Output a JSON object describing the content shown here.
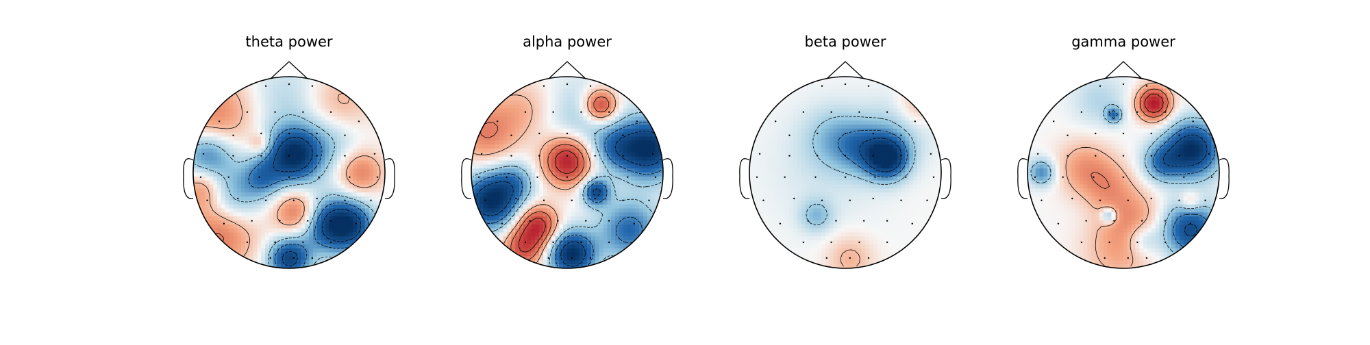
{
  "figure": {
    "colors": {
      "background": "#ffffff",
      "positive": "#b2182b",
      "neutral": "#f7f7f7",
      "negative": "#053061",
      "outline": "#000000"
    },
    "colormap": "RdBu_r"
  },
  "chart_data": [
    {
      "type": "heatmap",
      "subtype": "topomap",
      "title": "theta power",
      "contours": true,
      "sensor_markers": true,
      "blobs": [
        [
          -0.78,
          0.6,
          0.28,
          0.45
        ],
        [
          -0.85,
          0.18,
          0.2,
          -0.6
        ],
        [
          -0.9,
          -0.15,
          0.16,
          0.45
        ],
        [
          -0.6,
          -0.28,
          0.22,
          -0.45
        ],
        [
          -0.72,
          -0.62,
          0.26,
          0.55
        ],
        [
          0.05,
          0.18,
          0.2,
          -1.0
        ],
        [
          -0.28,
          -0.05,
          0.15,
          -0.45
        ],
        [
          -0.3,
          0.3,
          0.08,
          0.3
        ],
        [
          0.08,
          -0.42,
          0.16,
          0.55
        ],
        [
          0.75,
          0.0,
          0.16,
          0.45
        ],
        [
          0.4,
          -0.55,
          0.2,
          -0.7
        ],
        [
          0.65,
          -0.55,
          0.18,
          -0.7
        ],
        [
          0.0,
          -0.9,
          0.15,
          -0.85
        ],
        [
          0.5,
          0.7,
          0.25,
          0.3
        ],
        [
          0.0,
          0.75,
          0.3,
          -0.2
        ],
        [
          0.45,
          0.35,
          0.22,
          -0.25
        ]
      ]
    },
    {
      "type": "heatmap",
      "subtype": "topomap",
      "title": "alpha power",
      "contours": true,
      "sensor_markers": true,
      "blobs": [
        [
          0.0,
          0.12,
          0.17,
          1.0
        ],
        [
          0.35,
          0.7,
          0.12,
          0.8
        ],
        [
          -0.3,
          -0.55,
          0.14,
          0.8
        ],
        [
          -0.45,
          -0.78,
          0.15,
          0.7
        ],
        [
          -0.85,
          0.42,
          0.22,
          0.45
        ],
        [
          -0.45,
          0.65,
          0.22,
          0.25
        ],
        [
          0.85,
          0.25,
          0.22,
          -1.0
        ],
        [
          0.5,
          0.25,
          0.16,
          -0.4
        ],
        [
          -0.8,
          -0.3,
          0.2,
          -1.0
        ],
        [
          -0.55,
          -0.1,
          0.15,
          -0.4
        ],
        [
          0.05,
          -0.85,
          0.17,
          -1.0
        ],
        [
          0.3,
          -0.2,
          0.1,
          -0.8
        ],
        [
          0.65,
          -0.6,
          0.22,
          -0.6
        ],
        [
          0.15,
          0.55,
          0.3,
          -0.25
        ]
      ]
    },
    {
      "type": "heatmap",
      "subtype": "topomap",
      "title": "beta power",
      "contours": true,
      "sensor_markers": true,
      "blobs": [
        [
          0.44,
          0.15,
          0.15,
          -0.95
        ],
        [
          0.2,
          0.25,
          0.18,
          -0.4
        ],
        [
          -0.1,
          0.35,
          0.22,
          -0.3
        ],
        [
          0.55,
          0.45,
          0.25,
          -0.2
        ],
        [
          -0.3,
          -0.45,
          0.12,
          -0.3
        ],
        [
          0.75,
          0.7,
          0.15,
          0.25
        ],
        [
          0.05,
          -0.9,
          0.17,
          0.25
        ],
        [
          -0.2,
          0.05,
          0.45,
          -0.1
        ]
      ]
    },
    {
      "type": "heatmap",
      "subtype": "topomap",
      "title": "gamma power",
      "contours": true,
      "sensor_markers": true,
      "blobs": [
        [
          0.32,
          0.72,
          0.12,
          1.0
        ],
        [
          0.72,
          0.24,
          0.2,
          -1.0
        ],
        [
          0.4,
          0.1,
          0.14,
          -0.5
        ],
        [
          -0.4,
          0.05,
          0.2,
          0.35
        ],
        [
          -0.15,
          -0.15,
          0.18,
          0.3
        ],
        [
          0.1,
          -0.45,
          0.2,
          0.3
        ],
        [
          -0.05,
          -0.8,
          0.25,
          0.3
        ],
        [
          -0.85,
          0.0,
          0.1,
          -0.5
        ],
        [
          -0.1,
          0.6,
          0.06,
          -0.5
        ],
        [
          -0.15,
          -0.45,
          0.06,
          -0.5
        ],
        [
          0.7,
          -0.6,
          0.2,
          -0.8
        ],
        [
          0.2,
          -0.7,
          0.12,
          -0.3
        ],
        [
          -0.25,
          0.75,
          0.2,
          -0.2
        ],
        [
          0.7,
          -0.3,
          0.08,
          0.3
        ]
      ]
    }
  ]
}
